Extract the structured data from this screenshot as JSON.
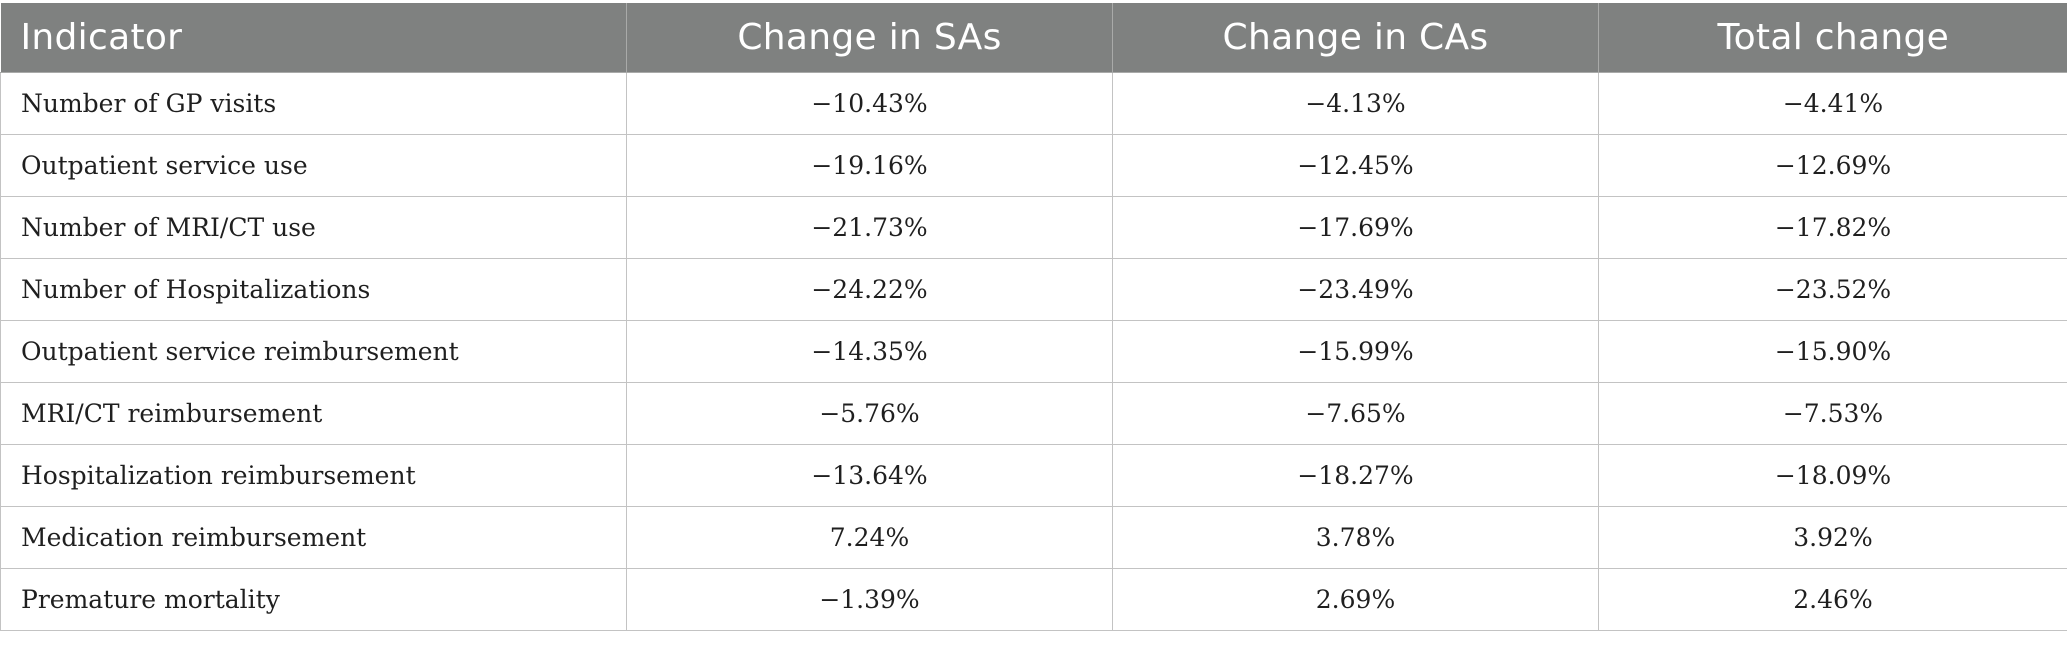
{
  "table": {
    "headers": [
      "Indicator",
      "Change in SAs",
      "Change in CAs",
      "Total change"
    ],
    "rows": [
      [
        "Number of GP visits",
        "−10.43%",
        "−4.13%",
        "−4.41%"
      ],
      [
        "Outpatient service use",
        "−19.16%",
        "−12.45%",
        "−12.69%"
      ],
      [
        "Number of MRI/CT use",
        "−21.73%",
        "−17.69%",
        "−17.82%"
      ],
      [
        "Number of Hospitalizations",
        "−24.22%",
        "−23.49%",
        "−23.52%"
      ],
      [
        "Outpatient service reimbursement",
        "−14.35%",
        "−15.99%",
        "−15.90%"
      ],
      [
        "MRI/CT reimbursement",
        "−5.76%",
        "−7.65%",
        "−7.53%"
      ],
      [
        "Hospitalization reimbursement",
        "−13.64%",
        "−18.27%",
        "−18.09%"
      ],
      [
        "Medication reimbursement",
        "7.24%",
        "3.78%",
        "3.92%"
      ],
      [
        "Premature mortality",
        "−1.39%",
        "2.69%",
        "2.46%"
      ]
    ]
  },
  "colors": {
    "header_background": "#7f8180",
    "header_text": "#ffffff",
    "grid_line": "#c3c3c3"
  }
}
